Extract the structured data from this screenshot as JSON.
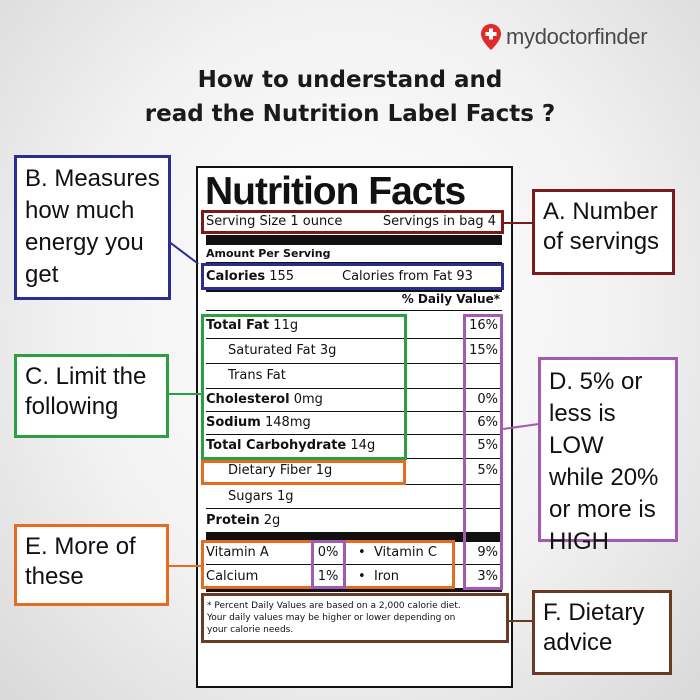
{
  "brand": {
    "name_part1": "mydoctor",
    "name_part2": "finder",
    "accent": "#e02b2b"
  },
  "title": {
    "line1": "How to understand and",
    "line2": "read the Nutrition Label Facts ?"
  },
  "label": {
    "heading": "Nutrition Facts",
    "serving_size": "Serving Size 1 ounce",
    "servings_in_bag": "Servings in bag 4",
    "amount_per_serving": "Amount Per Serving",
    "calories": "Calories",
    "calories_value": "155",
    "calories_from_fat": "Calories from Fat 93",
    "daily_value_header": "% Daily Value*",
    "nutrients": [
      {
        "name": "Total Fat",
        "amount": "11g",
        "dv": "16%"
      },
      {
        "name": "Saturated Fat",
        "amount": "3g",
        "dv": "15%"
      },
      {
        "name": "Trans Fat",
        "amount": "",
        "dv": ""
      },
      {
        "name": "Cholesterol",
        "amount": "0mg",
        "dv": "0%"
      },
      {
        "name": "Sodium",
        "amount": "148mg",
        "dv": "6%"
      },
      {
        "name": "Total Carbohydrate",
        "amount": "14g",
        "dv": "5%"
      },
      {
        "name": "Dietary Fiber",
        "amount": "1g",
        "dv": "5%"
      },
      {
        "name": "Sugars",
        "amount": "1g",
        "dv": ""
      },
      {
        "name": "Protein",
        "amount": "2g",
        "dv": ""
      }
    ],
    "vitamins": [
      {
        "name": "Vitamin A",
        "dv": "0%"
      },
      {
        "name": "Vitamin C",
        "dv": "9%"
      },
      {
        "name": "Calcium",
        "dv": "1%"
      },
      {
        "name": "Iron",
        "dv": "3%"
      }
    ],
    "footnote_line1": "* Percent Daily Values are based on a 2,000 calorie diet.",
    "footnote_line2": "Your daily values may be higher or lower depending on",
    "footnote_line3": "your calorie needs."
  },
  "callouts": {
    "a": {
      "line1": "A. Number",
      "line2": "of servings",
      "color": "#7a1a1a"
    },
    "b": {
      "line1": "B. Measures",
      "line2": "how much",
      "line3": "energy you",
      "line4": "get",
      "color": "#2a2f8f"
    },
    "c": {
      "line1": "C. Limit the",
      "line2": "following",
      "color": "#2e9e43"
    },
    "d": {
      "line1": "D. 5% or",
      "line2": "less is LOW",
      "line3": "while 20%",
      "line4": "or more is",
      "line5": "HIGH",
      "color": "#a25bb0"
    },
    "e": {
      "line1": "E. More of",
      "line2": "these",
      "color": "#e56a22"
    },
    "f": {
      "line1": "F. Dietary",
      "line2": "advice",
      "color": "#6b3a22"
    }
  }
}
